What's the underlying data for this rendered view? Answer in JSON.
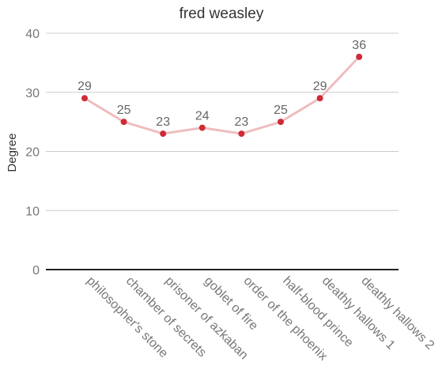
{
  "chart_data": {
    "type": "line",
    "title": "fred weasley",
    "xlabel": "",
    "ylabel": "Degree",
    "categories": [
      "philosopher's stone",
      "chamber of secrets",
      "prisoner of azkaban",
      "goblet of fire",
      "order of the phoenix",
      "half-blood prince",
      "deathly hallows 1",
      "deathly hallows 2"
    ],
    "series": [
      {
        "values": [
          29,
          25,
          23,
          24,
          23,
          25,
          29,
          36
        ],
        "line_color": "#efbcbf",
        "marker_color": "#cf2a36"
      }
    ],
    "ylim": [
      0,
      40
    ],
    "yticks": [
      0,
      10,
      20,
      30,
      40
    ],
    "grid": true,
    "data_labels": true,
    "legend": "none"
  }
}
